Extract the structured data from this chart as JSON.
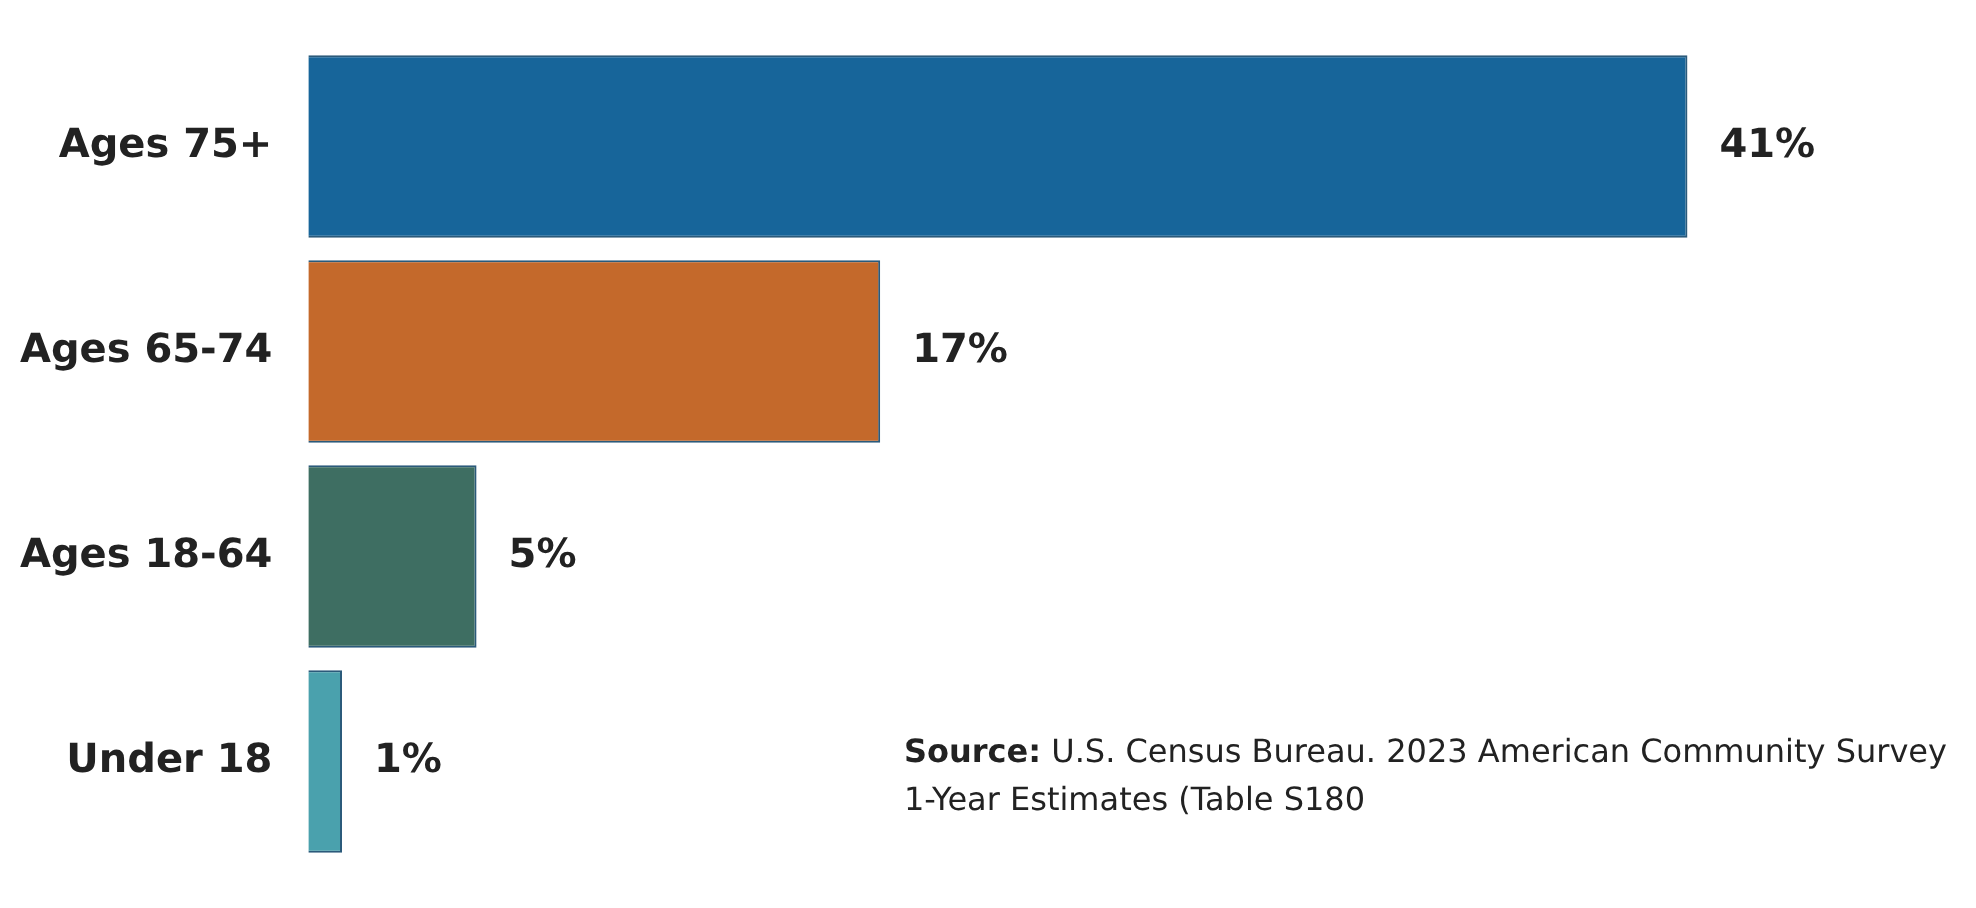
{
  "chart_data": {
    "type": "bar",
    "orientation": "horizontal",
    "categories": [
      "Ages 75+",
      "Ages 65-74",
      "Ages 18-64",
      "Under 18"
    ],
    "values": [
      41,
      17,
      5,
      1
    ],
    "colors": [
      "#17659a",
      "#c4692b",
      "#3e6e62",
      "#4aa1ad"
    ],
    "value_labels": [
      "41%",
      "17%",
      "5%",
      "1%"
    ],
    "tick_labels": "y",
    "annotations": [
      "Source: U.S. Census Bureau. 2023 American Community Survey 1-Year Estimates (Table S180"
    ]
  }
}
